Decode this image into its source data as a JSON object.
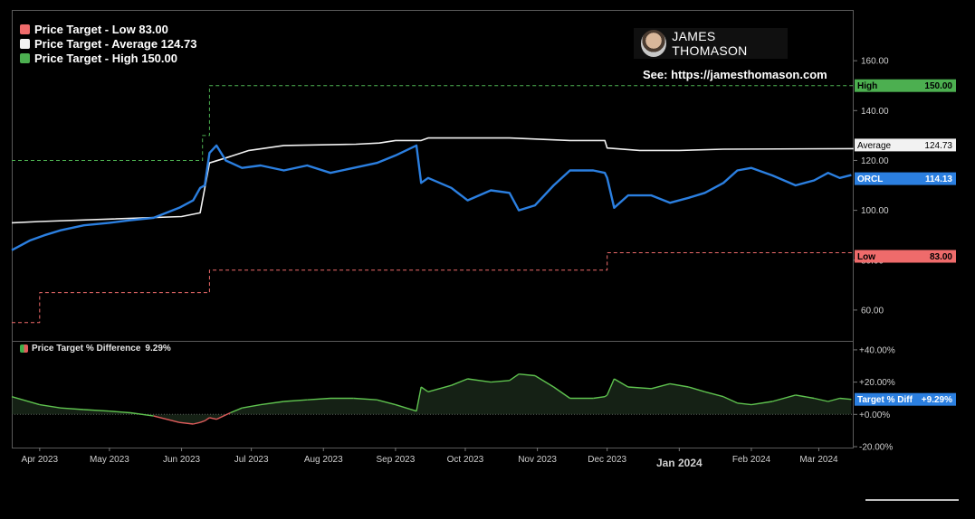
{
  "legend": {
    "items": [
      {
        "label": "Price Target - Low 83.00",
        "color": "#ef6b6b"
      },
      {
        "label": "Price Target - Average 124.73",
        "color": "#ffffff"
      },
      {
        "label": "Price Target - High 150.00",
        "color": "#4caf50"
      }
    ]
  },
  "brand": {
    "name": "JAMES THOMASON",
    "see": "See: https://jamesthomason.com"
  },
  "price_axis_ticks": [
    "160.00",
    "140.00",
    "120.00",
    "100.00",
    "80.00",
    "60.00"
  ],
  "pct_axis_ticks": [
    "+40.00%",
    "+20.00%",
    "+0.00%",
    "-20.00%"
  ],
  "x_ticks": [
    "Apr 2023",
    "May 2023",
    "Jun 2023",
    "Jul 2023",
    "Aug 2023",
    "Sep 2023",
    "Oct 2023",
    "Nov 2023",
    "Dec 2023",
    "Jan 2024",
    "Feb 2024",
    "Mar 2024"
  ],
  "tags": [
    {
      "name": "High",
      "value": "150.00",
      "bg": "#4caf50",
      "fg": "#000000"
    },
    {
      "name": "Average",
      "value": "124.73",
      "bg": "#f2f2f2",
      "fg": "#000000"
    },
    {
      "name": "ORCL",
      "value": "114.13",
      "bg": "#2b7fe0",
      "fg": "#ffffff"
    },
    {
      "name": "Low",
      "value": "83.00",
      "bg": "#ef6b6b",
      "fg": "#000000"
    },
    {
      "name": "Target % Diff",
      "value": "+9.29%",
      "bg": "#2b7fe0",
      "fg": "#ffffff"
    }
  ],
  "sub_legend": {
    "label": "Price Target % Difference",
    "value": "9.29%"
  },
  "chart_data": [
    {
      "type": "line",
      "ylim": [
        48,
        180
      ],
      "xlim": [
        "2023-03-20",
        "2024-03-16"
      ],
      "series": [
        {
          "name": "Price Target - Low",
          "style": "step-dashed",
          "color": "#ef6b6b",
          "points": [
            [
              "2023-03-20",
              55
            ],
            [
              "2023-04-01",
              55
            ],
            [
              "2023-04-01",
              67
            ],
            [
              "2023-06-13",
              67
            ],
            [
              "2023-06-13",
              76
            ],
            [
              "2023-12-01",
              76
            ],
            [
              "2023-12-01",
              83
            ],
            [
              "2024-03-16",
              83
            ]
          ]
        },
        {
          "name": "Price Target - Average",
          "color": "#f2f2f2",
          "points": [
            [
              "2023-03-20",
              95
            ],
            [
              "2023-04-01",
              95.5
            ],
            [
              "2023-05-01",
              96.5
            ],
            [
              "2023-06-01",
              97.5
            ],
            [
              "2023-06-09",
              99
            ],
            [
              "2023-06-13",
              119
            ],
            [
              "2023-06-20",
              121
            ],
            [
              "2023-06-30",
              124
            ],
            [
              "2023-07-15",
              126
            ],
            [
              "2023-08-15",
              126.5
            ],
            [
              "2023-08-25",
              127
            ],
            [
              "2023-09-01",
              128
            ],
            [
              "2023-09-12",
              128
            ],
            [
              "2023-09-15",
              129
            ],
            [
              "2023-10-20",
              129
            ],
            [
              "2023-11-15",
              128
            ],
            [
              "2023-11-30",
              128
            ],
            [
              "2023-12-01",
              125
            ],
            [
              "2023-12-15",
              124
            ],
            [
              "2024-01-01",
              124
            ],
            [
              "2024-01-20",
              124.5
            ],
            [
              "2024-03-16",
              124.73
            ]
          ]
        },
        {
          "name": "Price Target - High",
          "style": "step-dashed",
          "color": "#4caf50",
          "points": [
            [
              "2023-03-20",
              120
            ],
            [
              "2023-06-10",
              120
            ],
            [
              "2023-06-10",
              130
            ],
            [
              "2023-06-13",
              130
            ],
            [
              "2023-06-13",
              150
            ],
            [
              "2024-03-16",
              150
            ]
          ]
        },
        {
          "name": "ORCL",
          "color": "#2b7fe0",
          "points": [
            [
              "2023-03-20",
              84
            ],
            [
              "2023-03-28",
              88
            ],
            [
              "2023-04-03",
              90
            ],
            [
              "2023-04-10",
              92
            ],
            [
              "2023-04-20",
              94
            ],
            [
              "2023-05-01",
              95
            ],
            [
              "2023-05-10",
              96
            ],
            [
              "2023-05-20",
              97
            ],
            [
              "2023-05-31",
              101
            ],
            [
              "2023-06-06",
              104
            ],
            [
              "2023-06-09",
              109
            ],
            [
              "2023-06-11",
              110
            ],
            [
              "2023-06-13",
              123
            ],
            [
              "2023-06-16",
              126
            ],
            [
              "2023-06-20",
              120
            ],
            [
              "2023-06-27",
              117
            ],
            [
              "2023-07-05",
              118
            ],
            [
              "2023-07-15",
              116
            ],
            [
              "2023-07-25",
              118
            ],
            [
              "2023-08-04",
              115
            ],
            [
              "2023-08-14",
              117
            ],
            [
              "2023-08-24",
              119
            ],
            [
              "2023-09-01",
              122
            ],
            [
              "2023-09-10",
              126
            ],
            [
              "2023-09-12",
              111
            ],
            [
              "2023-09-15",
              113
            ],
            [
              "2023-09-25",
              109
            ],
            [
              "2023-10-02",
              104
            ],
            [
              "2023-10-12",
              108
            ],
            [
              "2023-10-20",
              107
            ],
            [
              "2023-10-24",
              100
            ],
            [
              "2023-10-31",
              102
            ],
            [
              "2023-11-08",
              110
            ],
            [
              "2023-11-15",
              116
            ],
            [
              "2023-11-25",
              116
            ],
            [
              "2023-11-30",
              115
            ],
            [
              "2023-12-01",
              113
            ],
            [
              "2023-12-04",
              101
            ],
            [
              "2023-12-10",
              106
            ],
            [
              "2023-12-20",
              106
            ],
            [
              "2023-12-28",
              103
            ],
            [
              "2024-01-05",
              105
            ],
            [
              "2024-01-12",
              107
            ],
            [
              "2024-01-20",
              111
            ],
            [
              "2024-01-26",
              116
            ],
            [
              "2024-02-01",
              117
            ],
            [
              "2024-02-10",
              114
            ],
            [
              "2024-02-20",
              110
            ],
            [
              "2024-02-28",
              112
            ],
            [
              "2024-03-05",
              115
            ],
            [
              "2024-03-10",
              113
            ],
            [
              "2024-03-15",
              114.13
            ]
          ]
        }
      ]
    },
    {
      "type": "area",
      "name": "Price Target % Difference",
      "ylim": [
        -20,
        45
      ],
      "xlim": [
        "2023-03-20",
        "2024-03-16"
      ],
      "points": [
        [
          "2023-03-20",
          11
        ],
        [
          "2023-04-01",
          6
        ],
        [
          "2023-04-10",
          4
        ],
        [
          "2023-04-20",
          3
        ],
        [
          "2023-05-01",
          2
        ],
        [
          "2023-05-10",
          1
        ],
        [
          "2023-05-20",
          -1
        ],
        [
          "2023-05-31",
          -5
        ],
        [
          "2023-06-06",
          -6
        ],
        [
          "2023-06-09",
          -5
        ],
        [
          "2023-06-11",
          -4
        ],
        [
          "2023-06-13",
          -2
        ],
        [
          "2023-06-16",
          -3
        ],
        [
          "2023-06-22",
          1
        ],
        [
          "2023-06-27",
          4
        ],
        [
          "2023-07-05",
          6
        ],
        [
          "2023-07-15",
          8
        ],
        [
          "2023-07-25",
          9
        ],
        [
          "2023-08-04",
          10
        ],
        [
          "2023-08-14",
          10
        ],
        [
          "2023-08-24",
          9
        ],
        [
          "2023-09-01",
          6
        ],
        [
          "2023-09-10",
          2
        ],
        [
          "2023-09-12",
          17
        ],
        [
          "2023-09-15",
          14
        ],
        [
          "2023-09-25",
          18
        ],
        [
          "2023-10-02",
          22
        ],
        [
          "2023-10-12",
          20
        ],
        [
          "2023-10-20",
          21
        ],
        [
          "2023-10-24",
          25
        ],
        [
          "2023-10-31",
          24
        ],
        [
          "2023-11-08",
          17
        ],
        [
          "2023-11-15",
          10
        ],
        [
          "2023-11-25",
          10
        ],
        [
          "2023-11-30",
          11
        ],
        [
          "2023-12-01",
          12
        ],
        [
          "2023-12-04",
          22
        ],
        [
          "2023-12-10",
          17
        ],
        [
          "2023-12-20",
          16
        ],
        [
          "2023-12-28",
          19
        ],
        [
          "2024-01-05",
          17
        ],
        [
          "2024-01-12",
          14
        ],
        [
          "2024-01-20",
          11
        ],
        [
          "2024-01-26",
          7
        ],
        [
          "2024-02-01",
          6
        ],
        [
          "2024-02-10",
          8
        ],
        [
          "2024-02-20",
          12
        ],
        [
          "2024-02-28",
          10
        ],
        [
          "2024-03-05",
          8
        ],
        [
          "2024-03-10",
          10
        ],
        [
          "2024-03-15",
          9.29
        ]
      ]
    }
  ]
}
